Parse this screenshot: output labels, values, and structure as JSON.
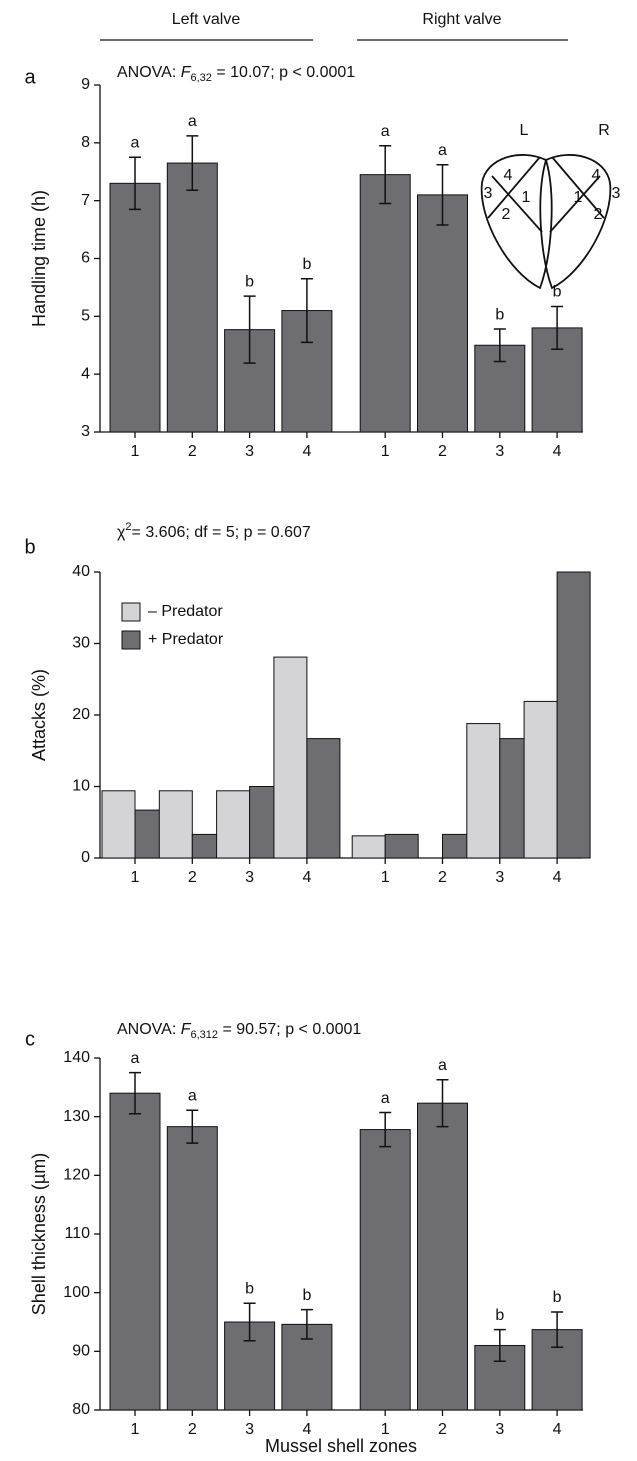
{
  "groups": [
    "Left valve",
    "Right valve"
  ],
  "inset": {
    "left_label": "L",
    "right_label": "R",
    "zones": [
      "1",
      "2",
      "3",
      "4"
    ]
  },
  "chart_data": [
    {
      "type": "bar",
      "panel": "a",
      "title": {
        "prefix": "ANOVA: ",
        "stat": "F",
        "sub": "6,32",
        "rest": " = 10.07; p < 0.0001"
      },
      "y_label": "Handling time (h)",
      "categories": [
        "1",
        "2",
        "3",
        "4",
        "1",
        "2",
        "3",
        "4"
      ],
      "series": [
        {
          "color": "#6d6d72",
          "values": [
            7.3,
            7.65,
            4.77,
            5.1,
            7.45,
            7.1,
            4.5,
            4.8
          ],
          "errors": [
            0.45,
            0.47,
            0.58,
            0.55,
            0.5,
            0.52,
            0.28,
            0.37
          ]
        }
      ],
      "letters": [
        "a",
        "a",
        "b",
        "b",
        "a",
        "a",
        "b",
        "b"
      ],
      "ylim": [
        3,
        9
      ],
      "yticks": [
        3,
        4,
        5,
        6,
        7,
        8,
        9
      ]
    },
    {
      "type": "bar",
      "panel": "b",
      "title": {
        "prefix": "",
        "stat": "χ",
        "sup": "2",
        "rest": "= 3.606; df = 5; p = 0.607"
      },
      "y_label": "Attacks (%)",
      "categories": [
        "1",
        "2",
        "3",
        "4",
        "1",
        "2",
        "3",
        "4"
      ],
      "series": [
        {
          "name": "– Predator",
          "color": "#d4d4d6",
          "values": [
            9.4,
            9.4,
            9.4,
            28.1,
            3.1,
            0,
            18.8,
            21.9
          ]
        },
        {
          "name": "+ Predator",
          "color": "#6d6d72",
          "values": [
            6.7,
            3.3,
            10,
            16.7,
            3.3,
            3.3,
            16.7,
            40
          ]
        }
      ],
      "legend": "upper left",
      "ylim": [
        0,
        40
      ],
      "yticks": [
        0,
        10,
        20,
        30,
        40
      ]
    },
    {
      "type": "bar",
      "panel": "c",
      "title": {
        "prefix": "ANOVA: ",
        "stat": "F",
        "sub": "6,312",
        "rest": " = 90.57; p < 0.0001"
      },
      "y_label": "Shell thickness (µm)",
      "x_label": "Mussel shell zones",
      "categories": [
        "1",
        "2",
        "3",
        "4",
        "1",
        "2",
        "3",
        "4"
      ],
      "series": [
        {
          "color": "#6d6d72",
          "values": [
            134,
            128.3,
            95,
            94.6,
            127.8,
            132.3,
            91,
            93.7
          ],
          "errors": [
            3.5,
            2.8,
            3.2,
            2.5,
            2.9,
            4,
            2.7,
            3
          ]
        }
      ],
      "letters": [
        "a",
        "a",
        "b",
        "b",
        "a",
        "a",
        "b",
        "b"
      ],
      "ylim": [
        80,
        140
      ],
      "yticks": [
        80,
        90,
        100,
        110,
        120,
        130,
        140
      ]
    }
  ]
}
